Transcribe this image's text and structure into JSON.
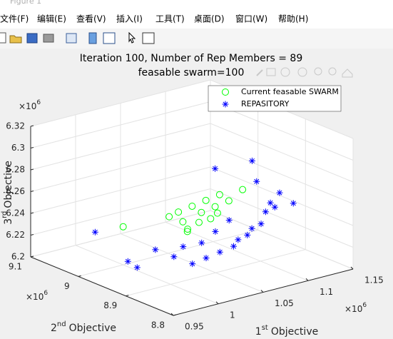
{
  "window_title": "Figure 1",
  "menu": [
    "文件(F)",
    "编辑(E)",
    "查看(V)",
    "插入(I)",
    "工具(T)",
    "桌面(D)",
    "窗口(W)",
    "帮助(H)"
  ],
  "chart_data": {
    "type": "scatter3d",
    "title": "Iteration 100, Number of Rep Members = 89",
    "subtitle": "feasable swarm=100",
    "xlabel": {
      "number": "1",
      "sup": "st",
      "text": "Objective"
    },
    "ylabel": {
      "number": "2",
      "sup": "nd",
      "text": "Objective"
    },
    "zlabel": {
      "number": "3",
      "sup": "rd",
      "text": "Objective"
    },
    "xexponent": {
      "base": "×10",
      "power": "6"
    },
    "yexponent": {
      "base": "×10",
      "power": "6"
    },
    "zexponent": {
      "base": "×10",
      "power": "6"
    },
    "xlim": [
      0.95,
      1.15
    ],
    "xticks": [
      0.95,
      1,
      1.05,
      1.1,
      1.15
    ],
    "ylim": [
      8.8,
      9.1
    ],
    "yticks": [
      8.8,
      8.9,
      9,
      9.1
    ],
    "zlim": [
      6.2,
      6.32
    ],
    "zticks": [
      6.2,
      6.22,
      6.24,
      6.26,
      6.28,
      6.3,
      6.32
    ],
    "grid": true,
    "legend_loc": "northeast",
    "series": [
      {
        "name": "Current feasable SWARM",
        "color": "#00ff00",
        "marker": "circle",
        "x": [
          1.0,
          1.03,
          1.035,
          1.04,
          1.045,
          1.05,
          1.055,
          1.06,
          1.065,
          1.07,
          1.04,
          1.05,
          1.06,
          1.08,
          1.045,
          1.055
        ],
        "y": [
          9.0,
          8.96,
          8.95,
          8.95,
          8.94,
          8.93,
          8.93,
          8.92,
          8.92,
          8.91,
          8.94,
          8.935,
          8.915,
          8.9,
          8.95,
          8.92
        ],
        "z": [
          6.235,
          6.245,
          6.25,
          6.24,
          6.255,
          6.25,
          6.26,
          6.255,
          6.265,
          6.26,
          6.235,
          6.24,
          6.25,
          6.27,
          6.23,
          6.245
        ]
      },
      {
        "name": "REPASITORY",
        "color": "#0000ff",
        "marker": "star",
        "x": [
          0.99,
          1.0,
          1.005,
          1.02,
          1.03,
          1.04,
          1.05,
          1.06,
          1.07,
          1.075,
          1.08,
          1.085,
          1.09,
          1.095,
          1.1,
          1.1,
          1.095,
          1.085,
          1.06,
          1.08,
          1.065,
          1.055,
          1.045,
          1.035,
          1.11
        ],
        "y": [
          9.04,
          8.99,
          8.98,
          8.97,
          8.95,
          8.93,
          8.92,
          8.91,
          8.9,
          8.9,
          8.89,
          8.89,
          8.88,
          8.88,
          8.87,
          8.86,
          8.87,
          8.88,
          8.92,
          8.88,
          8.9,
          8.91,
          8.92,
          8.94,
          8.85
        ],
        "z": [
          6.225,
          6.205,
          6.2,
          6.215,
          6.21,
          6.205,
          6.21,
          6.215,
          6.22,
          6.225,
          6.23,
          6.235,
          6.24,
          6.25,
          6.255,
          6.27,
          6.26,
          6.28,
          6.29,
          6.3,
          6.245,
          6.235,
          6.225,
          6.22,
          6.26
        ]
      }
    ]
  }
}
